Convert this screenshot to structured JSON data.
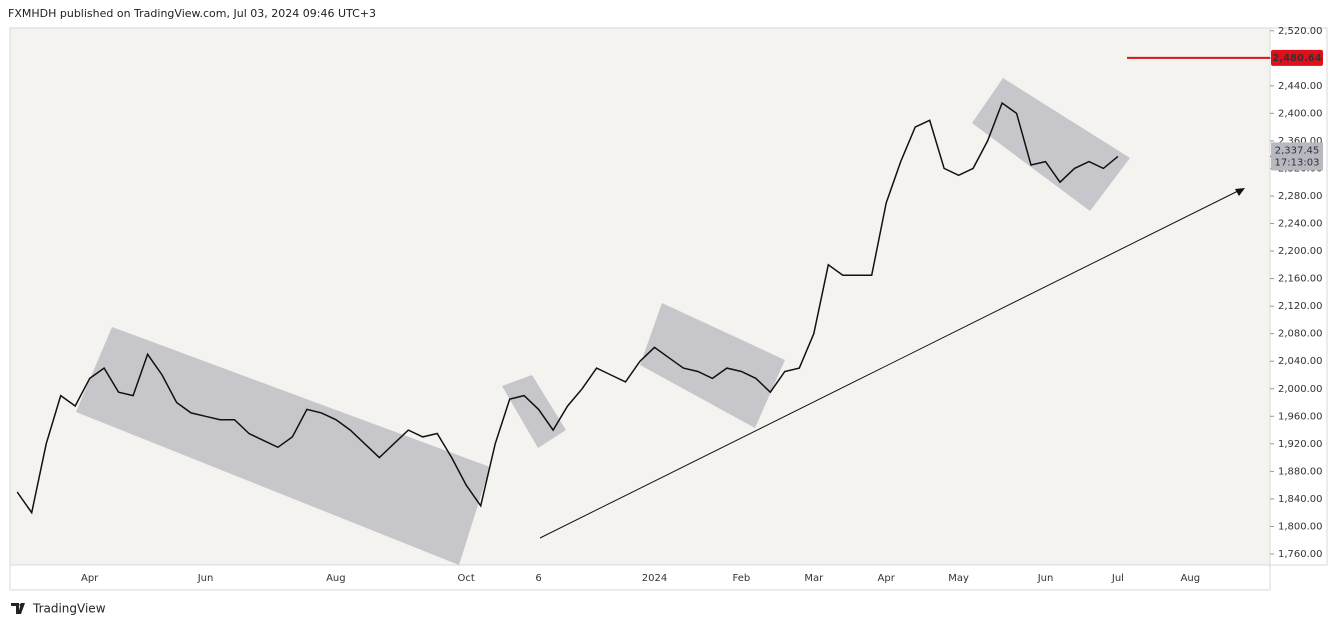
{
  "header": "FXMHDH published on TradingView.com, Jul 03, 2024 09:46 UTC+3",
  "footer": "TradingView",
  "chart_data": {
    "type": "line",
    "color": "#111111",
    "categories": [
      null,
      null,
      null,
      null,
      null,
      "Apr",
      null,
      null,
      null,
      null,
      null,
      null,
      null,
      "Jun",
      null,
      null,
      null,
      null,
      null,
      null,
      null,
      null,
      "Aug",
      null,
      null,
      null,
      null,
      null,
      null,
      null,
      null,
      "Oct",
      null,
      null,
      null,
      null,
      "6",
      null,
      null,
      null,
      null,
      null,
      null,
      null,
      "2024",
      null,
      null,
      null,
      null,
      null,
      "Feb",
      null,
      null,
      null,
      null,
      "Mar",
      null,
      null,
      null,
      null,
      "Apr",
      null,
      null,
      null,
      null,
      "May",
      null,
      null,
      null,
      null,
      null,
      "Jun",
      null,
      null,
      null,
      null,
      "Jul",
      null,
      null,
      null,
      null,
      "Aug",
      null,
      null,
      null,
      null,
      null
    ],
    "values": [
      1850,
      1820,
      1920,
      1990,
      1975,
      2015,
      2030,
      1995,
      1990,
      2050,
      2020,
      1980,
      1965,
      1960,
      1955,
      1955,
      1935,
      1925,
      1915,
      1930,
      1970,
      1965,
      1955,
      1940,
      1920,
      1900,
      1920,
      1940,
      1930,
      1935,
      1900,
      1860,
      1830,
      1920,
      1985,
      1990,
      1970,
      1940,
      1975,
      2000,
      2030,
      2020,
      2010,
      2040,
      2060,
      2045,
      2030,
      2025,
      2015,
      2030,
      2025,
      2015,
      1995,
      2025,
      2030,
      2080,
      2180,
      2165,
      2165,
      2165,
      2270,
      2330,
      2380,
      2390,
      2320,
      2310,
      2320,
      2360,
      2415,
      2400,
      2325,
      2330,
      2300,
      2320,
      2330,
      2320,
      2337.45,
      null,
      null,
      null,
      null,
      null,
      null,
      null,
      null,
      null,
      null
    ],
    "ylim": [
      1744,
      2524
    ],
    "yticks": [
      {
        "value": 1760,
        "label": "1,760.00"
      },
      {
        "value": 1800,
        "label": "1,800.00"
      },
      {
        "value": 1840,
        "label": "1,840.00"
      },
      {
        "value": 1880,
        "label": "1,880.00"
      },
      {
        "value": 1920,
        "label": "1,920.00"
      },
      {
        "value": 1960,
        "label": "1,960.00"
      },
      {
        "value": 2000,
        "label": "2,000.00"
      },
      {
        "value": 2040,
        "label": "2,040.00"
      },
      {
        "value": 2080,
        "label": "2,080.00"
      },
      {
        "value": 2120,
        "label": "2,120.00"
      },
      {
        "value": 2160,
        "label": "2,160.00"
      },
      {
        "value": 2200,
        "label": "2,200.00"
      },
      {
        "value": 2240,
        "label": "2,240.00"
      },
      {
        "value": 2280,
        "label": "2,280.00"
      },
      {
        "value": 2320,
        "label": "2,320.00"
      },
      {
        "value": 2360,
        "label": "2,360.00"
      },
      {
        "value": 2400,
        "label": "2,400.00"
      },
      {
        "value": 2440,
        "label": "2,440.00"
      },
      {
        "value": 2480,
        "label": "2,480.00"
      },
      {
        "value": 2520,
        "label": "2,520.00"
      }
    ],
    "grid": false,
    "last_price": {
      "value": 2337.45,
      "label": "2,337.45"
    },
    "countdown": "17:13:03",
    "level": {
      "value": 2480.64,
      "label": "2,480.64",
      "color": "#e0101a"
    }
  }
}
